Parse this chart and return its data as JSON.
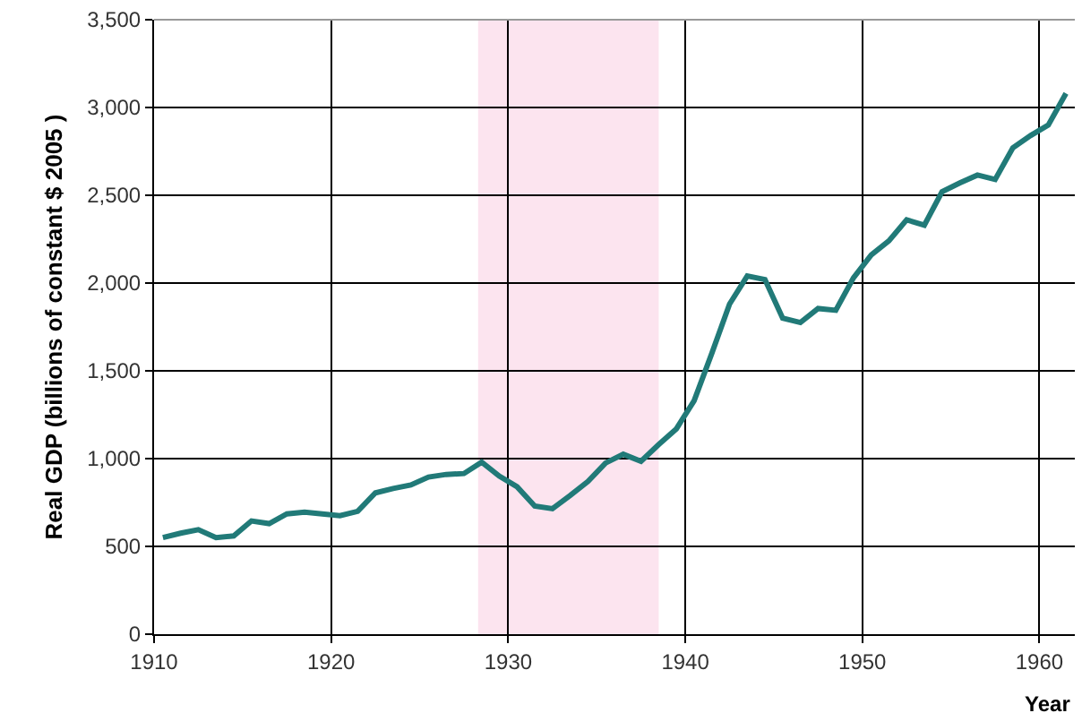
{
  "chart_data": {
    "type": "line",
    "xlabel": "Year",
    "ylabel": "Real GDP (billions of constant $ 2005 )",
    "x": [
      1910.5,
      1911.5,
      1912.5,
      1913.5,
      1914.5,
      1915.5,
      1916.5,
      1917.5,
      1918.5,
      1919.5,
      1920.5,
      1921.5,
      1922.5,
      1923.5,
      1924.5,
      1925.5,
      1926.5,
      1927.5,
      1928.5,
      1929.5,
      1930.5,
      1931.5,
      1932.5,
      1933.5,
      1934.5,
      1935.5,
      1936.5,
      1937.5,
      1938.5,
      1939.5,
      1940.5,
      1941.5,
      1942.5,
      1943.5,
      1944.5,
      1945.5,
      1946.5,
      1947.5,
      1948.5,
      1949.5,
      1950.5,
      1951.5,
      1952.5,
      1953.5,
      1954.5,
      1955.5,
      1956.5,
      1957.5,
      1958.5,
      1959.5,
      1960.5,
      1961.5
    ],
    "series": [
      {
        "color": "#217a78",
        "values": [
          550,
          575,
          595,
          550,
          560,
          645,
          630,
          685,
          695,
          685,
          675,
          700,
          805,
          830,
          850,
          895,
          910,
          915,
          980,
          900,
          840,
          730,
          715,
          790,
          870,
          975,
          1025,
          985,
          1080,
          1170,
          1330,
          1600,
          1880,
          2040,
          2020,
          1800,
          1775,
          1855,
          1845,
          2030,
          2160,
          2240,
          2360,
          2330,
          2520,
          2570,
          2615,
          2590,
          2770,
          2840,
          2900,
          3080
        ]
      }
    ],
    "xlim": [
      1910,
      1962
    ],
    "xticks": [
      1910,
      1920,
      1930,
      1940,
      1950,
      1960
    ],
    "ylim": [
      0,
      3500
    ],
    "yticks": [
      {
        "value": 0,
        "label": "0"
      },
      {
        "value": 500,
        "label": "500"
      },
      {
        "value": 1000,
        "label": "1,000"
      },
      {
        "value": 1500,
        "label": "1,500"
      },
      {
        "value": 2000,
        "label": "2,000"
      },
      {
        "value": 2500,
        "label": "2,500"
      },
      {
        "value": 3000,
        "label": "3,000"
      },
      {
        "value": 3500,
        "label": "3,500"
      }
    ],
    "bands": [
      {
        "axis": "x",
        "from": 1928.3,
        "to": 1938.5,
        "color": "#fce4ef"
      }
    ],
    "grid": true,
    "marker": "none",
    "line_style": "solid"
  }
}
